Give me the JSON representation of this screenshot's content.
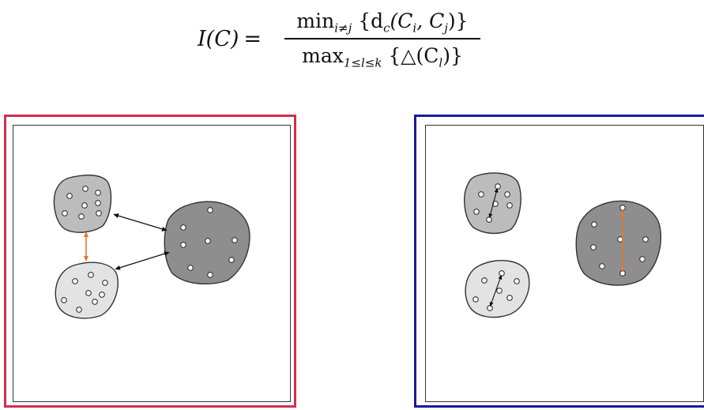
{
  "formula": {
    "lhs": "I(C)",
    "equals": "=",
    "numerator_op": "min",
    "numerator_sub": "i≠j",
    "numerator_body": "{d",
    "numerator_c": "c",
    "numerator_args": "(C",
    "numerator_i": "i",
    "numerator_comma": ", C",
    "numerator_j": "j",
    "numerator_close": ")}",
    "denominator_op": "max",
    "denominator_sub": "1≤l≤k",
    "denominator_body": "{△(C",
    "denominator_l": "l",
    "denominator_close": ")}"
  },
  "colors": {
    "left_frame": "#d12f4e",
    "right_frame": "#1a1a9a",
    "cluster_dark": "#8e8e8e",
    "cluster_mid": "#bcbcbc",
    "cluster_light": "#e3e3e3",
    "arrow_black": "#111111",
    "arrow_orange": "#e8762d"
  }
}
